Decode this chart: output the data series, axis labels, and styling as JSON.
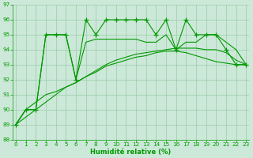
{
  "x": [
    0,
    1,
    2,
    3,
    4,
    5,
    6,
    7,
    8,
    9,
    10,
    11,
    12,
    13,
    14,
    15,
    16,
    17,
    18,
    19,
    20,
    21,
    22,
    23
  ],
  "line1": [
    89,
    90,
    90,
    95,
    95,
    95,
    92,
    96,
    95,
    96,
    96,
    96,
    96,
    96,
    95,
    96,
    94,
    96,
    95,
    95,
    95,
    94,
    93,
    93
  ],
  "line2": [
    89,
    90,
    90,
    95,
    95,
    95,
    92,
    94.5,
    94.7,
    94.7,
    94.7,
    94.7,
    94.7,
    94.5,
    94.5,
    95,
    94,
    94.5,
    94.5,
    95,
    95,
    94.5,
    94,
    93
  ],
  "line3": [
    89,
    90,
    90.5,
    91,
    91.2,
    91.5,
    91.8,
    92.2,
    92.6,
    93.0,
    93.3,
    93.5,
    93.7,
    93.8,
    93.9,
    94.0,
    94.1,
    94.1,
    94.1,
    94.0,
    94.0,
    93.8,
    93.3,
    93.0
  ],
  "line4": [
    89,
    89.5,
    90.0,
    90.5,
    91.0,
    91.5,
    91.8,
    92.2,
    92.5,
    92.9,
    93.1,
    93.3,
    93.5,
    93.6,
    93.8,
    93.9,
    93.9,
    93.8,
    93.6,
    93.4,
    93.2,
    93.1,
    93.0,
    93.0
  ],
  "bg_color": "#cce8d8",
  "grid_color": "#99ccaa",
  "line_color": "#009900",
  "xlim": [
    0,
    23
  ],
  "ylim": [
    88,
    97
  ],
  "yticks": [
    88,
    89,
    90,
    91,
    92,
    93,
    94,
    95,
    96,
    97
  ],
  "xticks": [
    0,
    1,
    2,
    3,
    4,
    5,
    6,
    7,
    8,
    9,
    10,
    11,
    12,
    13,
    14,
    15,
    16,
    17,
    18,
    19,
    20,
    21,
    22,
    23
  ],
  "xlabel": "Humidité relative (%)",
  "xlabel_color": "#009900",
  "tick_color": "#009900",
  "markersize": 4,
  "linewidth": 0.8,
  "tick_fontsize": 5.2,
  "xlabel_fontsize": 6.0
}
